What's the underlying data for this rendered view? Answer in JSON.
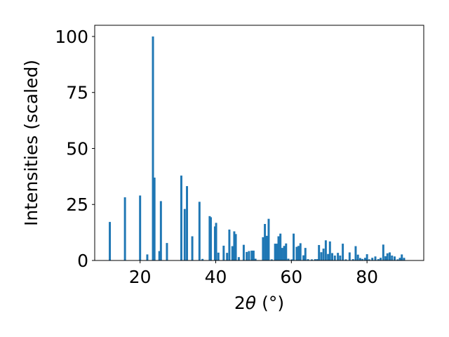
{
  "chart_data": {
    "type": "bar",
    "title": "",
    "xlabel_main": "2",
    "xlabel_symbol": "θ",
    "xlabel_unit": "(°)",
    "ylabel": "Intensities (scaled)",
    "xlim": [
      8,
      95
    ],
    "ylim": [
      0,
      105
    ],
    "xticks": [
      20,
      40,
      60,
      80
    ],
    "yticks": [
      0,
      25,
      50,
      75,
      100
    ],
    "bar_width": 0.55,
    "bar_color": "#1f77b4",
    "grid": false,
    "legend": "none",
    "x": [
      12.0,
      16.0,
      20.0,
      21.9,
      23.4,
      23.8,
      25.1,
      25.5,
      27.1,
      30.9,
      31.8,
      32.4,
      33.8,
      35.7,
      36.5,
      38.4,
      38.7,
      39.8,
      40.1,
      40.7,
      42.1,
      43.0,
      43.6,
      44.4,
      44.9,
      45.3,
      46.1,
      47.4,
      48.2,
      48.8,
      49.5,
      50.0,
      50.5,
      52.5,
      53.0,
      53.5,
      54.0,
      54.8,
      55.7,
      56.2,
      56.6,
      57.1,
      57.6,
      58.1,
      58.6,
      59.2,
      60.1,
      60.6,
      61.4,
      61.9,
      62.4,
      63.2,
      63.7,
      64.4,
      65.4,
      66.3,
      66.9,
      67.3,
      67.9,
      68.5,
      69.1,
      69.7,
      70.2,
      70.8,
      71.5,
      72.3,
      72.9,
      73.6,
      74.4,
      75.4,
      76.3,
      77.0,
      77.6,
      78.2,
      78.8,
      79.5,
      80.0,
      80.6,
      81.4,
      82.2,
      83.0,
      83.6,
      84.3,
      84.9,
      85.4,
      86.0,
      86.6,
      87.3,
      88.1,
      88.7,
      89.2,
      89.8
    ],
    "values": [
      17.2,
      28.2,
      29.0,
      2.7,
      100.0,
      37.0,
      4.2,
      26.5,
      7.8,
      37.9,
      23.0,
      33.2,
      10.8,
      26.2,
      0.7,
      19.8,
      19.3,
      15.2,
      16.8,
      3.5,
      6.6,
      3.4,
      13.8,
      6.4,
      13.0,
      11.8,
      1.5,
      7.0,
      3.8,
      4.2,
      4.4,
      4.4,
      0.8,
      10.4,
      16.3,
      11.0,
      18.6,
      0.5,
      7.5,
      7.5,
      10.8,
      12.0,
      5.6,
      6.5,
      7.6,
      0.8,
      0.5,
      12.0,
      6.1,
      6.5,
      7.7,
      2.3,
      5.6,
      0.6,
      0.5,
      0.6,
      0.6,
      6.9,
      3.7,
      5.3,
      9.0,
      2.9,
      8.5,
      3.3,
      2.2,
      3.4,
      2.2,
      7.5,
      0.5,
      3.6,
      0.6,
      6.4,
      2.6,
      1.1,
      0.7,
      1.2,
      2.8,
      0.5,
      1.2,
      1.8,
      0.6,
      1.2,
      7.1,
      1.9,
      3.2,
      3.6,
      2.2,
      1.8,
      0.5,
      1.2,
      2.7,
      1.2
    ]
  }
}
